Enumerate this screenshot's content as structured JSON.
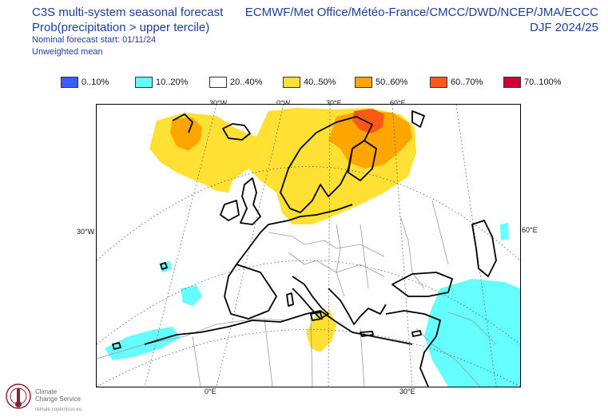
{
  "header": {
    "title": "C3S multi-system seasonal forecast",
    "subtitle": "Prob(precipitation > upper tercile)",
    "forecast_start": "Nominal forecast start: 01/11/24",
    "mean_type": "Unweighted mean",
    "centres": "ECMWF/Met Office/Météo-France/CMCC/DWD/NCEP/JMA/ECCC",
    "season": "DJF 2024/25"
  },
  "legend": [
    {
      "label": "0..10%",
      "color": "#3c5cff"
    },
    {
      "label": "10..20%",
      "color": "#66ffff"
    },
    {
      "label": "20..40%",
      "color": "#ffffff"
    },
    {
      "label": "40..50%",
      "color": "#ffe033"
    },
    {
      "label": "50..60%",
      "color": "#ffa500"
    },
    {
      "label": "60..70%",
      "color": "#ff5a14"
    },
    {
      "label": "70..100%",
      "color": "#cc0033"
    }
  ],
  "graticule_labels": {
    "top": [
      "30°W",
      "0°W",
      "30°E",
      "60°E"
    ],
    "left": "30°W",
    "right": "60°E",
    "bottom": [
      "0°E",
      "30°E"
    ]
  },
  "logo": {
    "name_line1": "Climate",
    "name_line2": "Change Service",
    "url": "climate.copernicus.eu",
    "brand_color": "#8b2332"
  }
}
